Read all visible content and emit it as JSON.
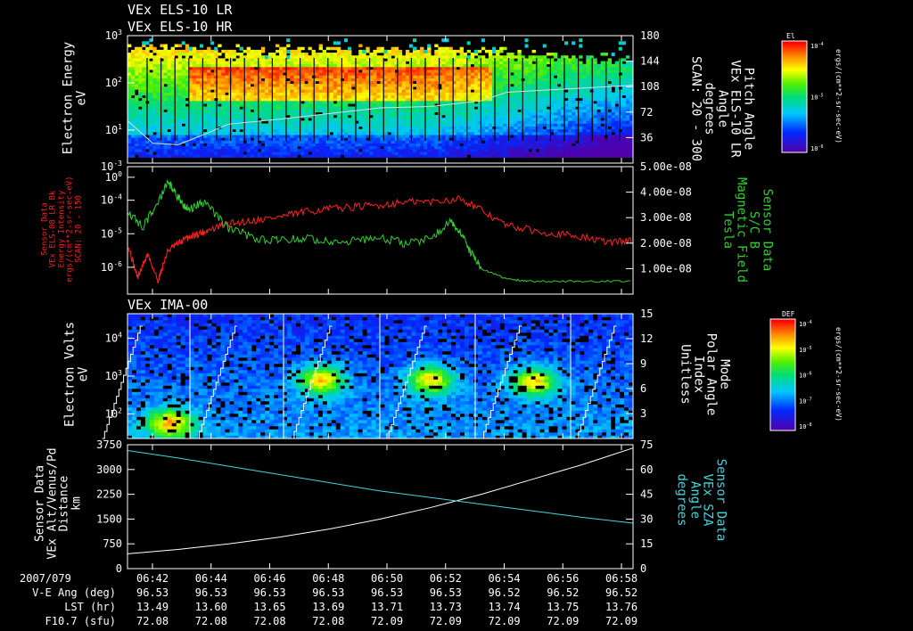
{
  "titles": {
    "p1a": "VEx ELS-10 LR",
    "p1b": "VEx ELS-10 HR",
    "p3": "VEx IMA-00"
  },
  "chart_data": [
    {
      "type": "heatmap",
      "ylabel": [
        "Electron Energy",
        "eV"
      ],
      "yticks": [
        "10^0",
        "10^1",
        "10^2",
        "10^3"
      ],
      "ylim_log": [
        0.3,
        3
      ],
      "right_label": [
        "Pitch Angle",
        "VEx ELS-10 LR",
        "Angle",
        "degrees",
        "SCAN: 20 - 300"
      ],
      "right_ticks": [
        "36",
        "72",
        "108",
        "144",
        "180"
      ],
      "right_lim": [
        0,
        180
      ],
      "colorbar": {
        "title": "El",
        "label": "ergs/(cm**2-sr-sec-eV)",
        "ticks": [
          "10^-4",
          "10^-5",
          "10^-6"
        ]
      },
      "overlay_pitch_angle": [
        {
          "t": 0.0,
          "deg": 60
        },
        {
          "t": 0.05,
          "deg": 28
        },
        {
          "t": 0.1,
          "deg": 26
        },
        {
          "t": 0.15,
          "deg": 40
        },
        {
          "t": 0.2,
          "deg": 55
        },
        {
          "t": 0.3,
          "deg": 62
        },
        {
          "t": 0.4,
          "deg": 70
        },
        {
          "t": 0.5,
          "deg": 78
        },
        {
          "t": 0.6,
          "deg": 80
        },
        {
          "t": 0.7,
          "deg": 88
        },
        {
          "t": 0.75,
          "deg": 100
        },
        {
          "t": 0.85,
          "deg": 104
        },
        {
          "t": 1.0,
          "deg": 110
        }
      ]
    },
    {
      "type": "line",
      "ylabel": [
        "Sensor Data",
        "VEx ELS-08 LR Bk",
        "Energy Intensity",
        "ergs/(cm**2-sr-sec-eV)",
        "SCAN: 20 - 150"
      ],
      "yticks": [
        "10^-6",
        "10^-5",
        "10^-4",
        "10^-3"
      ],
      "ylim_log": [
        -6.8,
        -3
      ],
      "right_label": [
        "Sensor Data",
        "S/C B",
        "Magnetic Field",
        "Tesla"
      ],
      "right_ticks": [
        "1.00e-08",
        "2.00e-08",
        "3.00e-08",
        "4.00e-08",
        "5.00e-08"
      ],
      "right_lim": [
        0,
        5e-08
      ],
      "series": [
        {
          "color": "#ff2020",
          "axis": "left",
          "points": [
            [
              0.0,
              -5.3
            ],
            [
              0.02,
              -6.3
            ],
            [
              0.04,
              -5.6
            ],
            [
              0.06,
              -6.4
            ],
            [
              0.08,
              -5.5
            ],
            [
              0.1,
              -5.3
            ],
            [
              0.12,
              -5.1
            ],
            [
              0.14,
              -5.0
            ],
            [
              0.16,
              -4.9
            ],
            [
              0.2,
              -4.7
            ],
            [
              0.25,
              -4.6
            ],
            [
              0.3,
              -4.5
            ],
            [
              0.35,
              -4.35
            ],
            [
              0.4,
              -4.25
            ],
            [
              0.45,
              -4.2
            ],
            [
              0.5,
              -4.15
            ],
            [
              0.55,
              -4.05
            ],
            [
              0.6,
              -4.05
            ],
            [
              0.66,
              -3.95
            ],
            [
              0.7,
              -4.3
            ],
            [
              0.75,
              -4.75
            ],
            [
              0.8,
              -4.9
            ],
            [
              0.85,
              -5.0
            ],
            [
              0.9,
              -5.1
            ],
            [
              0.95,
              -5.25
            ],
            [
              1.0,
              -5.2
            ]
          ]
        },
        {
          "color": "#30d030",
          "axis": "right",
          "points": [
            [
              0.0,
              3.3e-08
            ],
            [
              0.03,
              2.6e-08
            ],
            [
              0.06,
              3.6e-08
            ],
            [
              0.08,
              4.4e-08
            ],
            [
              0.1,
              3.8e-08
            ],
            [
              0.12,
              3.3e-08
            ],
            [
              0.15,
              3.6e-08
            ],
            [
              0.2,
              2.6e-08
            ],
            [
              0.25,
              2.2e-08
            ],
            [
              0.3,
              2.1e-08
            ],
            [
              0.35,
              2.2e-08
            ],
            [
              0.4,
              2.1e-08
            ],
            [
              0.45,
              2.1e-08
            ],
            [
              0.5,
              2.2e-08
            ],
            [
              0.55,
              2e-08
            ],
            [
              0.6,
              2.2e-08
            ],
            [
              0.64,
              2.9e-08
            ],
            [
              0.66,
              2.4e-08
            ],
            [
              0.68,
              1.6e-08
            ],
            [
              0.7,
              1e-08
            ],
            [
              0.75,
              6e-09
            ],
            [
              0.8,
              5e-09
            ],
            [
              0.9,
              5e-09
            ],
            [
              1.0,
              5e-09
            ]
          ]
        }
      ]
    },
    {
      "type": "heatmap",
      "ylabel": [
        "Electron Volts",
        "eV"
      ],
      "yticks": [
        "10^2",
        "10^3",
        "10^4"
      ],
      "ylim_log": [
        1.35,
        4.65
      ],
      "right_label": [
        "Mode",
        "Polar Angle",
        "Index",
        "Unitless"
      ],
      "right_ticks": [
        "3",
        "6",
        "9",
        "12",
        "15"
      ],
      "right_lim": [
        0,
        15
      ],
      "colorbar": {
        "title": "DEF",
        "label": "ergs/(cm**2-sr-sec-eV)",
        "ticks": [
          "10^-4",
          "10^-5",
          "10^-6",
          "10^-7",
          "10^-8"
        ]
      },
      "sweep_period": 0.1875,
      "hot_spots": [
        [
          0.08,
          1.75
        ],
        [
          0.38,
          2.9
        ],
        [
          0.595,
          2.9
        ],
        [
          0.8,
          2.85
        ]
      ]
    },
    {
      "type": "line",
      "ylabel": [
        "Sensor Data",
        "VEx Alt/Venus/Pd",
        "Distance",
        "km"
      ],
      "yticks": [
        "0",
        "750",
        "1500",
        "2250",
        "3000",
        "3750"
      ],
      "ylim": [
        0,
        3750
      ],
      "right_label": [
        "Sensor Data",
        "VEx SZA",
        "Angle",
        "degrees"
      ],
      "right_ticks": [
        "0",
        "15",
        "30",
        "45",
        "60",
        "75"
      ],
      "right_lim": [
        0,
        75
      ],
      "series": [
        {
          "color": "#ffffff",
          "axis": "left",
          "points": [
            [
              0,
              450
            ],
            [
              0.1,
              580
            ],
            [
              0.2,
              750
            ],
            [
              0.3,
              950
            ],
            [
              0.4,
              1200
            ],
            [
              0.5,
              1500
            ],
            [
              0.6,
              1850
            ],
            [
              0.7,
              2250
            ],
            [
              0.8,
              2700
            ],
            [
              0.9,
              3150
            ],
            [
              1.0,
              3650
            ]
          ]
        },
        {
          "color": "#40d8e0",
          "axis": "right",
          "points": [
            [
              0,
              71.5
            ],
            [
              0.1,
              67
            ],
            [
              0.2,
              62
            ],
            [
              0.3,
              57
            ],
            [
              0.4,
              52
            ],
            [
              0.5,
              47
            ],
            [
              0.6,
              43
            ],
            [
              0.7,
              39
            ],
            [
              0.8,
              35
            ],
            [
              0.9,
              31
            ],
            [
              1.0,
              27.5
            ]
          ]
        }
      ]
    }
  ],
  "ephemeris": {
    "date": "2007/079",
    "times": [
      "06:42",
      "06:44",
      "06:46",
      "06:48",
      "06:50",
      "06:52",
      "06:54",
      "06:56",
      "06:58"
    ],
    "rows": [
      {
        "label": "V-E Ang (deg)",
        "values": [
          "96.53",
          "96.53",
          "96.53",
          "96.53",
          "96.53",
          "96.53",
          "96.52",
          "96.52",
          "96.52"
        ]
      },
      {
        "label": "LST (hr)",
        "values": [
          "13.49",
          "13.60",
          "13.65",
          "13.69",
          "13.71",
          "13.73",
          "13.74",
          "13.75",
          "13.76"
        ]
      },
      {
        "label": "F10.7 (sfu)",
        "values": [
          "72.08",
          "72.08",
          "72.08",
          "72.08",
          "72.09",
          "72.09",
          "72.09",
          "72.09",
          "72.09"
        ]
      }
    ]
  }
}
